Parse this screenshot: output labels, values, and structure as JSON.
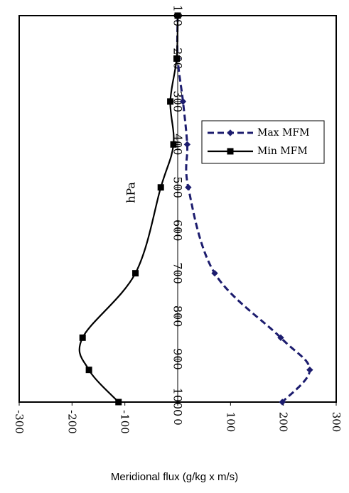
{
  "chart_data": {
    "type": "line",
    "orientation": "rotated 90 degrees clockwise",
    "xlabel": "Meridional flux (g/kg x m/s)",
    "ylabel": "hPa",
    "xlim": [
      -300,
      300
    ],
    "ylim": [
      100,
      1000
    ],
    "x_ticks": [
      -300,
      -200,
      -100,
      0,
      100,
      200,
      300
    ],
    "y_ticks": [
      100,
      200,
      300,
      400,
      500,
      600,
      700,
      800,
      900,
      1000
    ],
    "grid": false,
    "legend_position": "right, upper-middle",
    "series": [
      {
        "name": "Max MFM",
        "color": "#1c1c6e",
        "line_style": "dashed",
        "marker": "diamond",
        "points": [
          [
            0,
            100
          ],
          [
            0,
            200
          ],
          [
            10,
            300
          ],
          [
            18,
            400
          ],
          [
            20,
            500
          ],
          [
            70,
            700
          ],
          [
            195,
            850
          ],
          [
            250,
            925
          ],
          [
            198,
            1000
          ]
        ]
      },
      {
        "name": "Min MFM",
        "color": "#000000",
        "line_style": "solid",
        "marker": "square",
        "points": [
          [
            0,
            100
          ],
          [
            -2,
            200
          ],
          [
            -14,
            300
          ],
          [
            -8,
            400
          ],
          [
            -32,
            500
          ],
          [
            -80,
            700
          ],
          [
            -180,
            850
          ],
          [
            -168,
            925
          ],
          [
            -112,
            1000
          ]
        ]
      }
    ]
  }
}
